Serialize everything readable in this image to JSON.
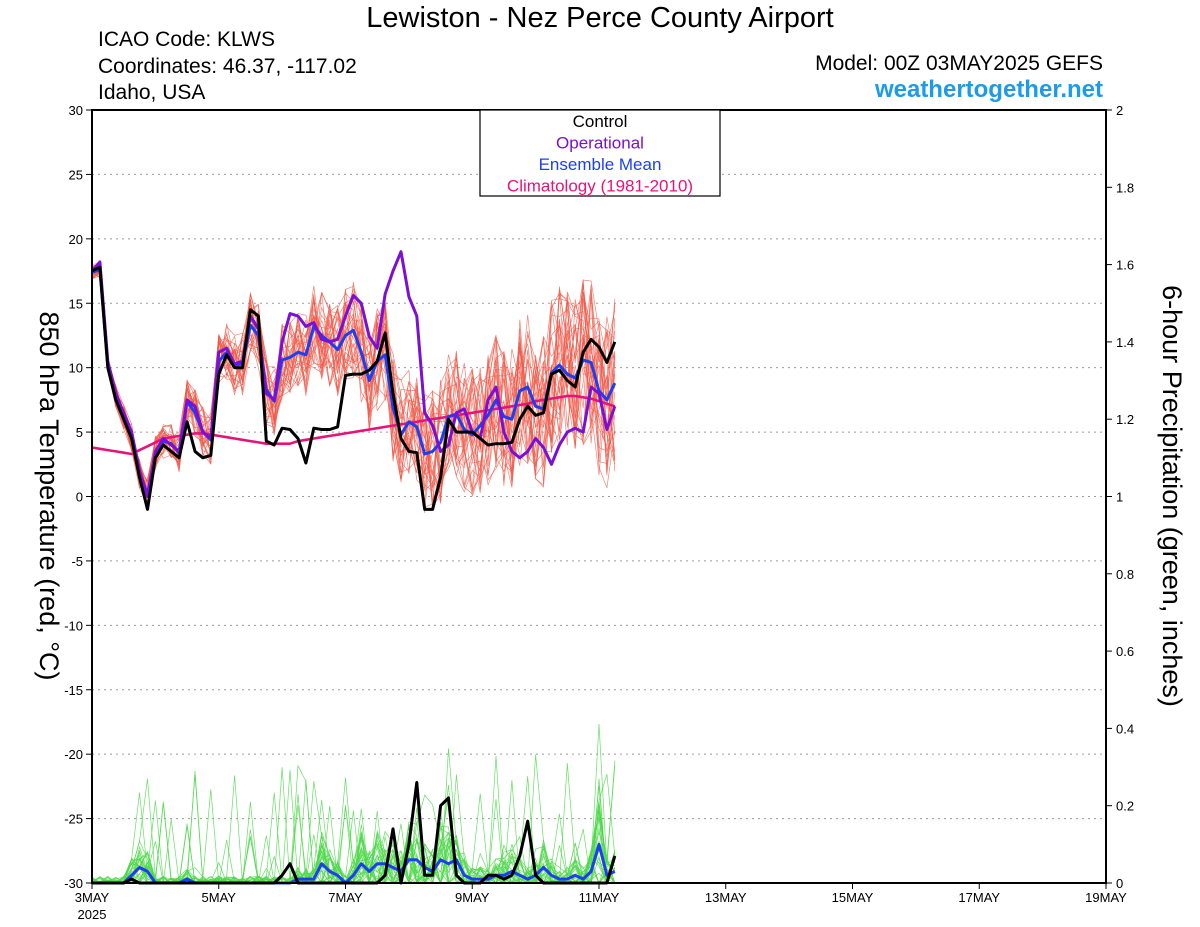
{
  "header": {
    "title": "Lewiston - Nez Perce County Airport",
    "icao": "ICAO Code: KLWS",
    "coordinates": "Coordinates: 46.37, -117.02",
    "region": "Idaho, USA",
    "model": "Model: 00Z 03MAY2025 GEFS",
    "site": "weathertogether.net"
  },
  "colors": {
    "control": "#000000",
    "operational": "#7a10d6",
    "ensemble_mean": "#1e3ff0",
    "climatology": "#e6147a",
    "members_temp": "#f05a4a",
    "members_precip": "#4ed84a",
    "site": "#1e9be8"
  },
  "chart_data": {
    "type": "line",
    "xlabel": "",
    "ylabel_left": "850 hPa Temperature (red, °C)",
    "ylabel_right": "6-hour Precipitation (green, inches)",
    "x_range": [
      "2025-05-03T00",
      "2025-05-19T00"
    ],
    "x_step_hours": 3,
    "x_ticks": [
      {
        "label": "3MAY",
        "sub": "2025",
        "date": "2025-05-03"
      },
      {
        "label": "5MAY",
        "date": "2025-05-05"
      },
      {
        "label": "7MAY",
        "date": "2025-05-07"
      },
      {
        "label": "9MAY",
        "date": "2025-05-09"
      },
      {
        "label": "11MAY",
        "date": "2025-05-11"
      },
      {
        "label": "13MAY",
        "date": "2025-05-13"
      },
      {
        "label": "15MAY",
        "date": "2025-05-15"
      },
      {
        "label": "17MAY",
        "date": "2025-05-17"
      },
      {
        "label": "19MAY",
        "date": "2025-05-19"
      }
    ],
    "y_left": {
      "min": -30,
      "max": 30,
      "ticks": [
        -30,
        -25,
        -20,
        -15,
        -10,
        -5,
        0,
        5,
        10,
        15,
        20,
        25,
        30
      ]
    },
    "y_right": {
      "min": 0,
      "max": 2,
      "ticks": [
        0,
        0.2,
        0.4,
        0.6,
        0.8,
        1,
        1.2,
        1.4,
        1.6,
        1.8,
        2
      ],
      "tick_labels": [
        "0",
        "0.2",
        "0.4",
        "0.6",
        "0.8",
        "1",
        "1.2",
        "1.4",
        "1.6",
        "1.8",
        "2"
      ]
    },
    "grid": {
      "horizontal": true,
      "style": "dotted"
    },
    "legend": {
      "placement": "top-center",
      "entries": [
        {
          "label": "Control",
          "color": "#000000"
        },
        {
          "label": "Operational",
          "color": "#7a10d6"
        },
        {
          "label": "Ensemble Mean",
          "color": "#1e3ff0"
        },
        {
          "label": "Climatology (1981-2010)",
          "color": "#e6147a"
        }
      ]
    },
    "temperature_series": [
      {
        "name": "Control",
        "color": "#000000",
        "values": [
          17.5,
          17.8,
          10,
          7.5,
          6,
          4.5,
          1.5,
          -1,
          3,
          4,
          3.5,
          3,
          5.8,
          3.5,
          3,
          3.2,
          9.5,
          11,
          10,
          10,
          14.5,
          14,
          4.3,
          4,
          5.3,
          5.2,
          4.5,
          2.6,
          5.3,
          5.2,
          5.2,
          5.4,
          9.4,
          9.5,
          9.5,
          9.8,
          10.5,
          12.7,
          8,
          4.5,
          3.5,
          3.4,
          -1,
          -1,
          1.5,
          6,
          5,
          5,
          5,
          4.5,
          4,
          4.1,
          4.1,
          4.2,
          6,
          7,
          6.3,
          6.5,
          9.5,
          9.8,
          9,
          8.5,
          11.2,
          12.2,
          11.6,
          10.4,
          12
        ]
      },
      {
        "name": "Operational",
        "color": "#7a10d6",
        "values": [
          17.5,
          18.2,
          10.5,
          8,
          6.5,
          5,
          2,
          0,
          3.5,
          4.5,
          4,
          3.5,
          7.5,
          7,
          5,
          4.5,
          11.2,
          11.5,
          10.3,
          10.5,
          14,
          13,
          8,
          7.5,
          12,
          14.2,
          14,
          13.2,
          13.5,
          12.2,
          12,
          12.2,
          14,
          15.6,
          15,
          12.4,
          11.5,
          15.7,
          17.5,
          19,
          15.5,
          14,
          6.5,
          5.5,
          3.5,
          4,
          6.5,
          6.8,
          5,
          4.5,
          7.5,
          8.5,
          5,
          3.5,
          3,
          3.5,
          4.5,
          3.8,
          2.5,
          4,
          5,
          5.3,
          5,
          8.5,
          8,
          5.2,
          7
        ]
      },
      {
        "name": "Ensemble Mean",
        "color": "#1e3ff0",
        "values": [
          17.4,
          17.6,
          10.2,
          7.8,
          6.2,
          4.6,
          1.8,
          0.2,
          3.3,
          4.3,
          4.1,
          3.4,
          7.4,
          6.5,
          5,
          4.4,
          10.5,
          11.2,
          10.2,
          10.3,
          13.3,
          12.5,
          8.3,
          7.4,
          10.6,
          10.8,
          11.2,
          11,
          13.2,
          12.5,
          12,
          11.4,
          12.5,
          12.9,
          11.2,
          9,
          10.5,
          11,
          6.9,
          4.8,
          5.8,
          5.4,
          3.3,
          3.5,
          4.2,
          6.2,
          6.4,
          5.2,
          4.8,
          5.5,
          6.3,
          7.5,
          6.2,
          6,
          8.2,
          8.5,
          7,
          6.8,
          9.6,
          10.2,
          9.5,
          9.2,
          10.6,
          10.4,
          8.2,
          7.5,
          8.8
        ]
      },
      {
        "name": "Climatology (1981-2010)",
        "color": "#e6147a",
        "values": [
          3.8,
          3.7,
          3.6,
          3.5,
          3.4,
          3.3,
          3.6,
          3.9,
          4.2,
          4.5,
          4.6,
          4.7,
          4.8,
          4.9,
          4.9,
          4.8,
          4.7,
          4.6,
          4.5,
          4.4,
          4.3,
          4.2,
          4.1,
          4.1,
          4.1,
          4.1,
          4.3,
          4.4,
          4.5,
          4.6,
          4.7,
          4.8,
          4.9,
          5,
          5.1,
          5.2,
          5.3,
          5.4,
          5.5,
          5.6,
          5.7,
          5.8,
          5.9,
          6,
          6.1,
          6.2,
          6.3,
          6.4,
          6.5,
          6.6,
          6.7,
          6.8,
          6.9,
          7,
          7.1,
          7.2,
          7.4,
          7.5,
          7.6,
          7.7,
          7.8,
          7.8,
          7.7,
          7.6,
          7.4,
          7.2,
          7
        ]
      }
    ],
    "precipitation_series": [
      {
        "name": "Control",
        "color": "#000000",
        "values": [
          0,
          0,
          0,
          0,
          0,
          0.01,
          0,
          0,
          0,
          0,
          0,
          0,
          0,
          0,
          0,
          0,
          0,
          0,
          0,
          0,
          0,
          0,
          0,
          0,
          0.02,
          0.05,
          0,
          0,
          0,
          0,
          0,
          0,
          0,
          0,
          0,
          0,
          0,
          0.02,
          0.14,
          0,
          0.1,
          0.26,
          0.02,
          0.02,
          0.2,
          0.22,
          0.02,
          0,
          0,
          0,
          0.02,
          0.02,
          0.01,
          0.02,
          0.07,
          0.16,
          0.02,
          0,
          0,
          0,
          0,
          0,
          0,
          0,
          0,
          0,
          0.07
        ]
      },
      {
        "name": "Ensemble Mean",
        "color": "#1e3ff0",
        "values": [
          0,
          0,
          0,
          0,
          0,
          0.02,
          0.04,
          0.03,
          0,
          0,
          0,
          0,
          0.01,
          0,
          0,
          0,
          0,
          0,
          0,
          0,
          0,
          0,
          0,
          0,
          0,
          0,
          0.01,
          0.01,
          0.01,
          0.05,
          0.03,
          0.02,
          0,
          0.02,
          0.05,
          0.03,
          0.05,
          0.05,
          0.04,
          0.03,
          0.06,
          0.06,
          0.04,
          0.03,
          0.06,
          0.05,
          0.06,
          0.02,
          0.01,
          0.01,
          0.01,
          0.02,
          0.02,
          0.03,
          0.02,
          0.01,
          0.02,
          0.04,
          0.02,
          0.01,
          0.01,
          0.02,
          0.01,
          0.03,
          0.1,
          0.02,
          0.03
        ]
      }
    ],
    "temperature_members_count": 30,
    "precipitation_members_count": 30
  }
}
